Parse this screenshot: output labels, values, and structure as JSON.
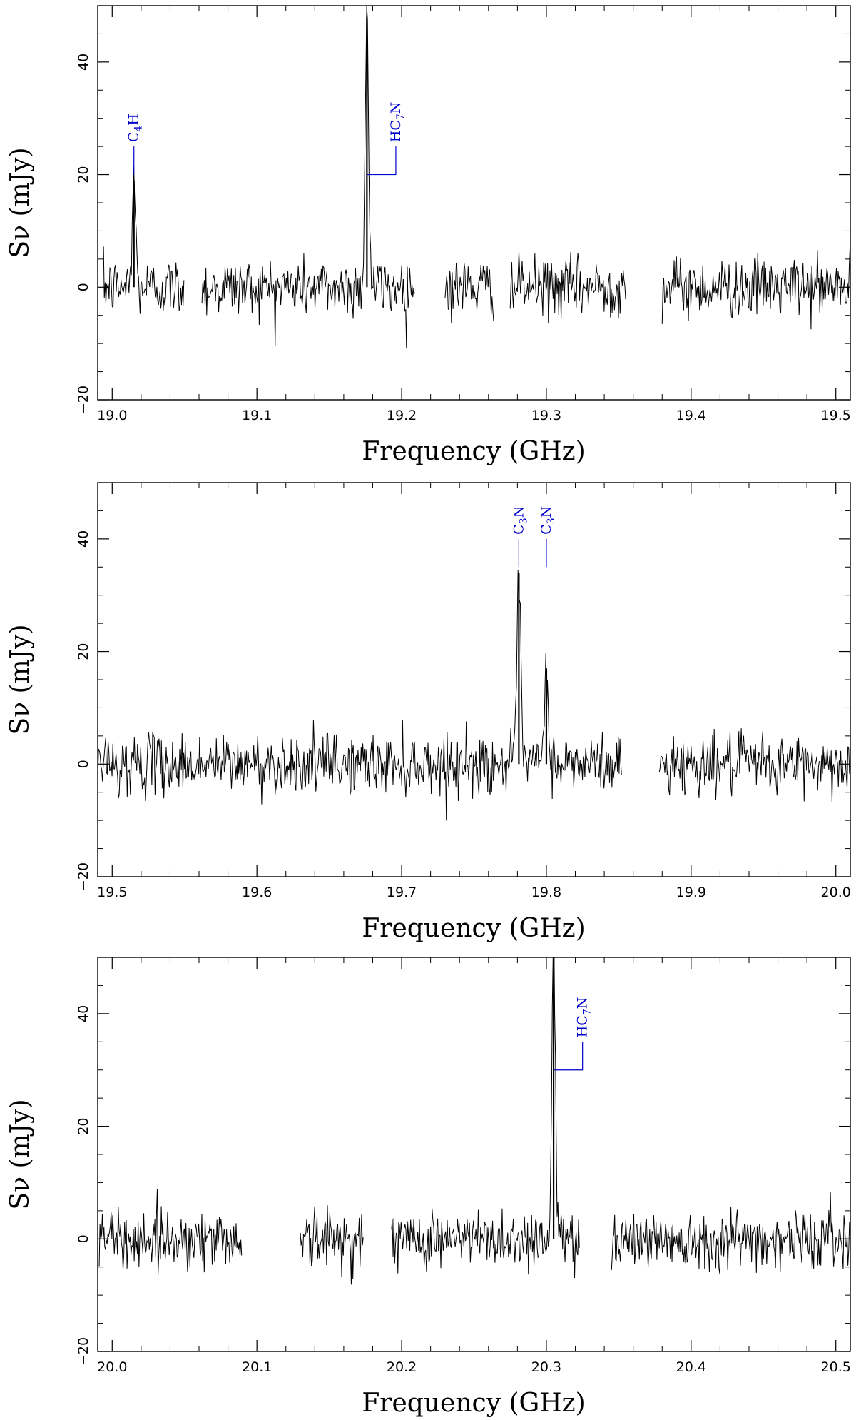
{
  "colors": {
    "spectrum": "#000000",
    "annotation": "#0000cc",
    "frame": "#000000"
  },
  "chart_data": [
    {
      "type": "line",
      "title": "",
      "xlabel": "Frequency (GHz)",
      "ylabel": "Sν (mJy)",
      "xlim": [
        18.99,
        19.51
      ],
      "ylim": [
        -20,
        50
      ],
      "xticks": [
        19.0,
        19.1,
        19.2,
        19.3,
        19.4,
        19.5
      ],
      "xtick_labels": [
        "19.0",
        "19.1",
        "19.2",
        "19.3",
        "19.4",
        "19.5"
      ],
      "yticks": [
        -20,
        0,
        20,
        40
      ],
      "ytick_labels": [
        "−20",
        "0",
        "20",
        "40"
      ],
      "grid": false,
      "noise_rms": 2.6,
      "segments": [
        [
          18.994,
          19.05
        ],
        [
          19.062,
          19.209
        ],
        [
          19.23,
          19.264
        ],
        [
          19.275,
          19.355
        ],
        [
          19.38,
          19.51
        ]
      ],
      "peaks": [
        {
          "x": 19.015,
          "y": 19,
          "width": 0.0012
        },
        {
          "x": 19.176,
          "y": 48,
          "width": 0.0012
        }
      ],
      "annotations": [
        {
          "label": "C4H",
          "text": "C",
          "sub": "4",
          "suffix": "H",
          "x": 19.015,
          "tick_from": 20,
          "tick_to": 25,
          "kind": "plain"
        },
        {
          "label": "HC7N",
          "text": "HC",
          "sub": "7",
          "suffix": "N",
          "x": 19.176,
          "tick_from": 20,
          "tick_to": 25,
          "kind": "offset",
          "x_offset": 19.196
        }
      ]
    },
    {
      "type": "line",
      "title": "",
      "xlabel": "Frequency (GHz)",
      "ylabel": "Sν (mJy)",
      "xlim": [
        19.49,
        20.01
      ],
      "ylim": [
        -20,
        50
      ],
      "xticks": [
        19.5,
        19.6,
        19.7,
        19.8,
        19.9,
        20.0
      ],
      "xtick_labels": [
        "19.5",
        "19.6",
        "19.7",
        "19.8",
        "19.9",
        "20.0"
      ],
      "yticks": [
        -20,
        0,
        20,
        40
      ],
      "ytick_labels": [
        "−20",
        "0",
        "20",
        "40"
      ],
      "grid": false,
      "noise_rms": 2.6,
      "segments": [
        [
          19.49,
          19.852
        ],
        [
          19.878,
          20.01
        ]
      ],
      "peaks": [
        {
          "x": 19.781,
          "y": 34,
          "width": 0.0012
        },
        {
          "x": 19.8,
          "y": 17,
          "width": 0.0012
        }
      ],
      "annotations": [
        {
          "label": "C3N",
          "text": "C",
          "sub": "3",
          "suffix": "N",
          "x": 19.781,
          "tick_from": 35,
          "tick_to": 40,
          "kind": "plain"
        },
        {
          "label": "C3N",
          "text": "C",
          "sub": "3",
          "suffix": "N",
          "x": 19.8,
          "tick_from": 35,
          "tick_to": 40,
          "kind": "plain"
        }
      ]
    },
    {
      "type": "line",
      "title": "",
      "xlabel": "Frequency (GHz)",
      "ylabel": "Sν (mJy)",
      "xlim": [
        19.99,
        20.51
      ],
      "ylim": [
        -20,
        50
      ],
      "xticks": [
        20.0,
        20.1,
        20.2,
        20.3,
        20.4,
        20.5
      ],
      "xtick_labels": [
        "20.0",
        "20.1",
        "20.2",
        "20.3",
        "20.4",
        "20.5"
      ],
      "yticks": [
        -20,
        0,
        20,
        40
      ],
      "ytick_labels": [
        "−20",
        "0",
        "20",
        "40"
      ],
      "grid": false,
      "noise_rms": 2.6,
      "segments": [
        [
          19.991,
          20.09
        ],
        [
          20.13,
          20.174
        ],
        [
          20.193,
          20.323
        ],
        [
          20.345,
          20.51
        ]
      ],
      "peaks": [
        {
          "x": 20.305,
          "y": 52,
          "width": 0.0012
        }
      ],
      "annotations": [
        {
          "label": "HC7N",
          "text": "HC",
          "sub": "7",
          "suffix": "N",
          "x": 20.305,
          "tick_from": 30,
          "tick_to": 35,
          "kind": "offset",
          "x_offset": 20.325
        }
      ]
    }
  ]
}
